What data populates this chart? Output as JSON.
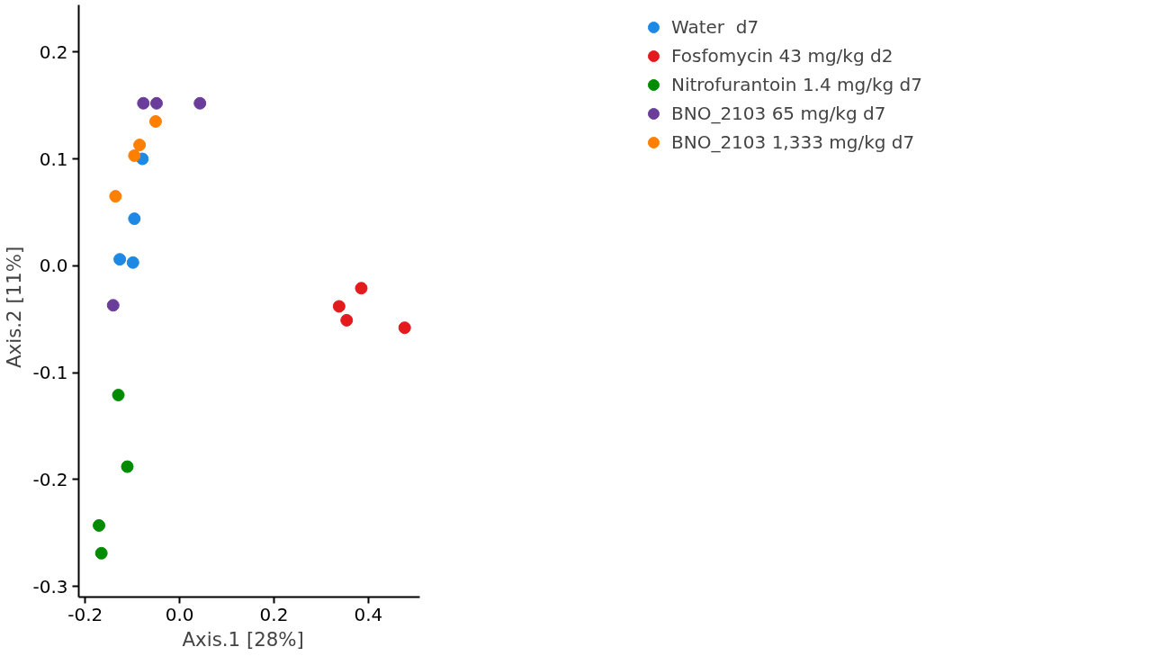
{
  "chart_data": {
    "type": "scatter",
    "xlabel": "Axis.1   [28%]",
    "ylabel": "Axis.2   [11%]",
    "xlim": [
      -0.214,
      0.509
    ],
    "ylim": [
      -0.31,
      0.244
    ],
    "xticks": [
      {
        "value": -0.2,
        "label": "-0.2"
      },
      {
        "value": 0,
        "label": "0.0"
      },
      {
        "value": 0.2,
        "label": "0.2"
      },
      {
        "value": 0.4,
        "label": "0.4"
      }
    ],
    "yticks": [
      {
        "value": -0.3,
        "label": "-0.3"
      },
      {
        "value": -0.2,
        "label": "-0.2"
      },
      {
        "value": -0.1,
        "label": "-0.1"
      },
      {
        "value": 0,
        "label": "0.0"
      },
      {
        "value": 0.1,
        "label": "0.1"
      },
      {
        "value": 0.2,
        "label": "0.2"
      }
    ],
    "grid": false,
    "legend": "top right",
    "marker": "circle",
    "series": [
      {
        "name": "Water  d7",
        "color": "#1e88e5",
        "x": [
          -0.127,
          -0.079,
          -0.096,
          -0.099
        ],
        "values": [
          0.006,
          0.1,
          0.044,
          0.003
        ]
      },
      {
        "name": "Fosfomycin 43 mg/kg d2",
        "color": "#e41a1c",
        "x": [
          0.338,
          0.354,
          0.385,
          0.477
        ],
        "values": [
          -0.038,
          -0.051,
          -0.021,
          -0.058
        ]
      },
      {
        "name": "Nitrofurantoin 1.4 mg/kg d7",
        "color": "#008b00",
        "x": [
          -0.13,
          -0.111,
          -0.171,
          -0.166
        ],
        "values": [
          -0.121,
          -0.188,
          -0.243,
          -0.269
        ]
      },
      {
        "name": "BNO_2103 65 mg/kg d7",
        "color": "#6a3d9a",
        "x": [
          -0.077,
          -0.049,
          0.043,
          -0.141
        ],
        "values": [
          0.152,
          0.152,
          0.152,
          -0.037
        ]
      },
      {
        "name": "BNO_2103 1,333 mg/kg d7",
        "color": "#ff7f00",
        "x": [
          -0.136,
          -0.096,
          -0.085,
          -0.051
        ],
        "values": [
          0.065,
          0.103,
          0.113,
          0.135
        ]
      }
    ]
  }
}
